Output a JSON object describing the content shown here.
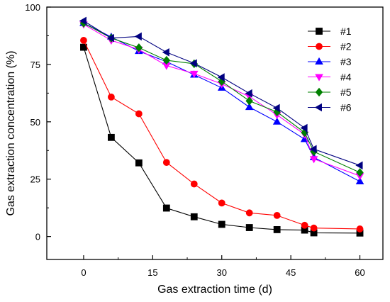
{
  "chart_data": {
    "type": "line",
    "xlabel": "Gas extraction time  (d)",
    "ylabel": "Gas extraction concentration  (%)",
    "xlim": [
      -8,
      65
    ],
    "ylim": [
      -10,
      100
    ],
    "xticks": [
      0,
      15,
      30,
      45,
      60
    ],
    "yticks": [
      0,
      25,
      50,
      75,
      100
    ],
    "grid": false,
    "legend_position": "top-right",
    "series": [
      {
        "name": "#1",
        "color": "#000000",
        "marker": "square",
        "x": [
          0,
          6,
          12,
          18,
          24,
          30,
          36,
          42,
          48,
          50,
          60
        ],
        "y": [
          82.5,
          43.2,
          32.1,
          12.4,
          8.6,
          5.3,
          3.9,
          3.0,
          2.8,
          1.6,
          1.5
        ]
      },
      {
        "name": "#2",
        "color": "#ff0000",
        "marker": "circle",
        "x": [
          0,
          6,
          12,
          18,
          24,
          30,
          36,
          42,
          48,
          50,
          60
        ],
        "y": [
          85.5,
          60.8,
          53.5,
          32.3,
          22.9,
          14.6,
          10.3,
          9.2,
          4.9,
          3.7,
          3.3
        ]
      },
      {
        "name": "#3",
        "color": "#0000ff",
        "marker": "triangle-up",
        "x": [
          0,
          6,
          12,
          18,
          24,
          30,
          36,
          42,
          48,
          50,
          60
        ],
        "y": [
          93.0,
          87.0,
          80.8,
          76.2,
          70.5,
          64.8,
          56.4,
          50.0,
          42.4,
          34.5,
          24.0
        ]
      },
      {
        "name": "#4",
        "color": "#ff00ff",
        "marker": "triangle-down",
        "x": [
          0,
          6,
          12,
          18,
          24,
          30,
          36,
          42,
          48,
          50,
          60
        ],
        "y": [
          92.5,
          85.5,
          81.5,
          74.5,
          71.0,
          66.5,
          61.0,
          53.0,
          44.5,
          33.8,
          26.4
        ]
      },
      {
        "name": "#5",
        "color": "#008000",
        "marker": "diamond",
        "x": [
          0,
          6,
          12,
          18,
          24,
          30,
          36,
          42,
          48,
          50,
          60
        ],
        "y": [
          93.0,
          86.5,
          82.3,
          76.8,
          75.3,
          67.6,
          59.1,
          54.3,
          45.3,
          37.0,
          27.9
        ]
      },
      {
        "name": "#6",
        "color": "#000080",
        "marker": "triangle-left",
        "x": [
          0,
          6,
          12,
          18,
          24,
          30,
          36,
          42,
          48,
          50,
          60
        ],
        "y": [
          94.0,
          86.5,
          87.2,
          80.3,
          75.5,
          69.4,
          62.4,
          56.0,
          47.3,
          38.1,
          31.0
        ]
      }
    ]
  }
}
